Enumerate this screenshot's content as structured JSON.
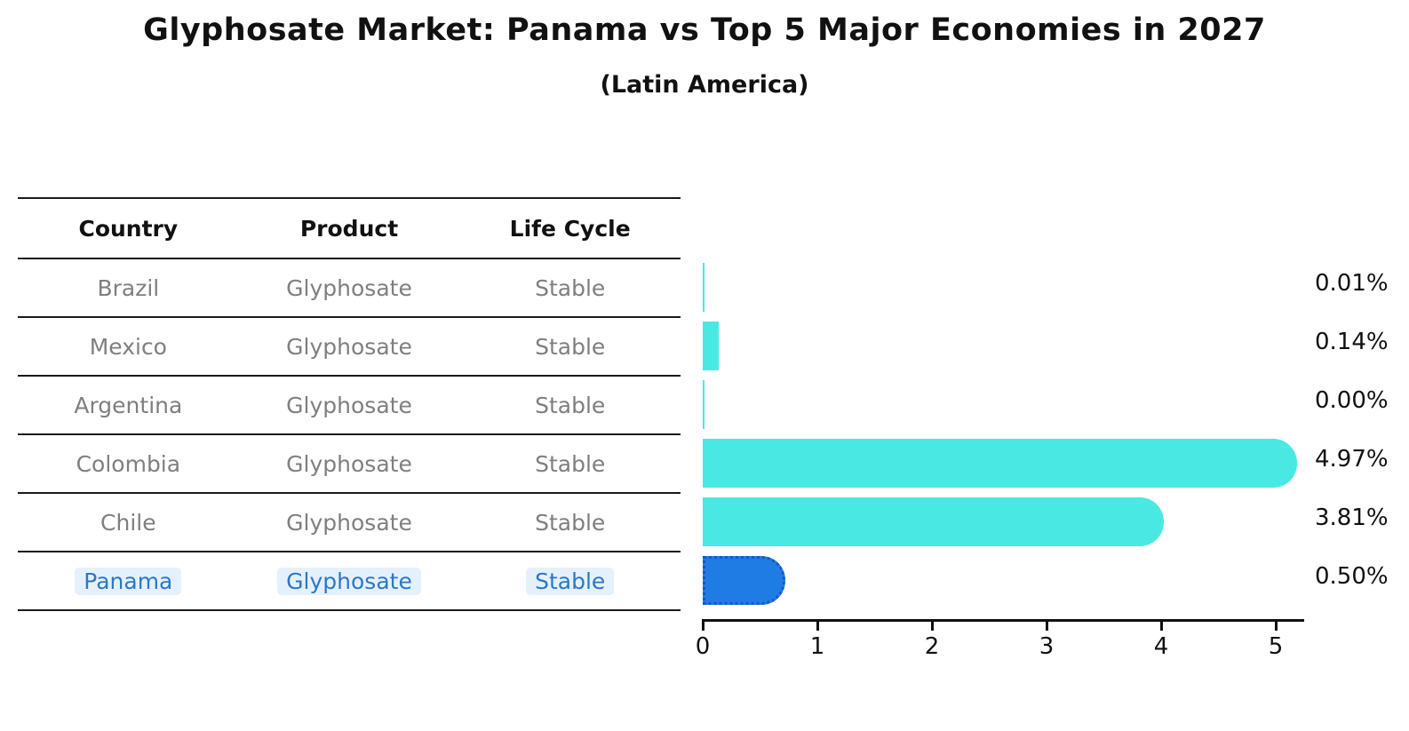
{
  "figure": {
    "title": "Glyphosate Market: Panama vs Top 5 Major Economies in 2027",
    "subtitle": "(Latin America)"
  },
  "table": {
    "headers": [
      "Country",
      "Product",
      "Life Cycle"
    ],
    "rows": [
      {
        "country": "Brazil",
        "product": "Glyphosate",
        "life_cycle": "Stable",
        "highlighted": false
      },
      {
        "country": "Mexico",
        "product": "Glyphosate",
        "life_cycle": "Stable",
        "highlighted": false
      },
      {
        "country": "Argentina",
        "product": "Glyphosate",
        "life_cycle": "Stable",
        "highlighted": false
      },
      {
        "country": "Colombia",
        "product": "Glyphosate",
        "life_cycle": "Stable",
        "highlighted": false
      },
      {
        "country": "Chile",
        "product": "Glyphosate",
        "life_cycle": "Stable",
        "highlighted": false
      },
      {
        "country": "Panama",
        "product": "Glyphosate",
        "life_cycle": "Stable",
        "highlighted": true
      }
    ]
  },
  "chart_data": {
    "type": "bar",
    "orientation": "horizontal",
    "title": "Glyphosate Market: Panama vs Top 5 Major Economies in 2027",
    "subtitle": "(Latin America)",
    "categories": [
      "Brazil",
      "Mexico",
      "Argentina",
      "Colombia",
      "Chile",
      "Panama"
    ],
    "values": [
      0.01,
      0.14,
      0.0,
      4.97,
      3.81,
      0.5
    ],
    "value_labels": [
      "0.01%",
      "0.14%",
      "0.00%",
      "4.97%",
      "3.81%",
      "0.50%"
    ],
    "xlabel": "",
    "ylabel": "",
    "xlim": [
      0,
      5.25
    ],
    "x_ticks": [
      "0",
      "1",
      "2",
      "3",
      "4",
      "5"
    ],
    "grid": false,
    "legend": null,
    "highlight_index": 5
  },
  "colors": {
    "bar_default": "#4AE8E3",
    "bar_highlight": "#1F7CE4",
    "bar_highlight_border": "#1557C9",
    "highlight_text": "#2E77C5",
    "highlight_text_bg": "#E4F1FC",
    "row_text": "#7F7F7F",
    "header_text": "#111111",
    "axis": "#111111"
  }
}
